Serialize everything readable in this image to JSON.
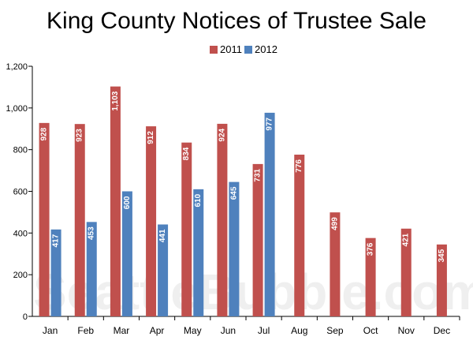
{
  "chart_data": {
    "type": "bar",
    "title": "King County Notices of Trustee Sale",
    "categories": [
      "Jan",
      "Feb",
      "Mar",
      "Apr",
      "May",
      "Jun",
      "Jul",
      "Aug",
      "Sep",
      "Oct",
      "Nov",
      "Dec"
    ],
    "series": [
      {
        "name": "2011",
        "color": "#c0504d",
        "values": [
          928,
          923,
          1103,
          912,
          834,
          924,
          731,
          776,
          499,
          376,
          421,
          345
        ]
      },
      {
        "name": "2012",
        "color": "#4f81bd",
        "values": [
          417,
          453,
          600,
          441,
          610,
          645,
          977,
          null,
          null,
          null,
          null,
          null
        ]
      }
    ],
    "data_labels": {
      "2011": [
        "928",
        "923",
        "1,103",
        "912",
        "834",
        "924",
        "731",
        "776",
        "499",
        "376",
        "421",
        "345"
      ],
      "2012": [
        "417",
        "453",
        "600",
        "441",
        "610",
        "645",
        "977",
        "",
        "",
        "",
        "",
        ""
      ]
    },
    "ylim": [
      0,
      1200
    ],
    "yticks": [
      0,
      200,
      400,
      600,
      800,
      1000,
      1200
    ],
    "ytick_labels": [
      "0",
      "200",
      "400",
      "600",
      "800",
      "1,000",
      "1,200"
    ],
    "legend_position": "top-center",
    "grid": false
  },
  "watermark": "SeattleBubble.com"
}
